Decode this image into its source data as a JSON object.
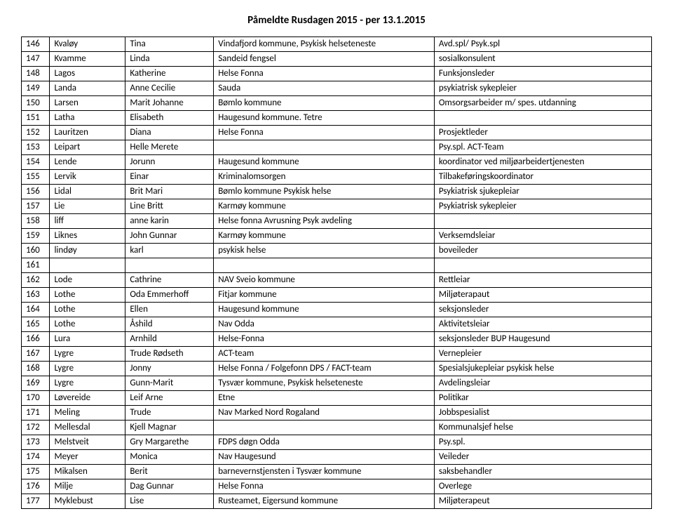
{
  "title": "Påmeldte Rusdagen 2015 - per 13.1.2015",
  "table": {
    "column_widths_pct": [
      4.5,
      12,
      14,
      35,
      34.5
    ],
    "border_color": "#000000",
    "background_color": "#ffffff",
    "text_color": "#000000",
    "font_size_pt": 10,
    "title_font_size_pt": 11,
    "rows": [
      [
        "146",
        "Kvaløy",
        "Tina",
        "Vindafjord kommune, Psykisk helseteneste",
        "Avd.spl/ Psyk.spl"
      ],
      [
        "147",
        "Kvamme",
        "Linda",
        "Sandeid fengsel",
        "sosialkonsulent"
      ],
      [
        "148",
        "Lagos",
        "Katherine",
        "Helse Fonna",
        "Funksjonsleder"
      ],
      [
        "149",
        "Landa",
        "Anne Cecilie",
        "Sauda",
        "psykiatrisk sykepleier"
      ],
      [
        "150",
        "Larsen",
        "Marit Johanne",
        "Bømlo kommune",
        "Omsorgsarbeider m/ spes. utdanning"
      ],
      [
        "151",
        "Latha",
        "Elisabeth",
        "Haugesund kommune. Tetre",
        ""
      ],
      [
        "152",
        "Lauritzen",
        "Diana",
        "Helse Fonna",
        "Prosjektleder"
      ],
      [
        "153",
        "Leipart",
        "Helle Merete",
        "",
        "Psy.spl. ACT-Team"
      ],
      [
        "154",
        "Lende",
        "Jorunn",
        "Haugesund kommune",
        "koordinator ved miljøarbeidertjenesten"
      ],
      [
        "155",
        "Lervik",
        "Einar",
        "Kriminalomsorgen",
        "Tilbakeføringskoordinator"
      ],
      [
        "156",
        "Lidal",
        "Brit Mari",
        "Bømlo kommune Psykisk helse",
        "Psykiatrisk sjukepleiar"
      ],
      [
        "157",
        "Lie",
        "Line Britt",
        "Karmøy kommune",
        "Psykiatrisk sykepleier"
      ],
      [
        "158",
        "liff",
        "anne karin",
        "Helse fonna Avrusning Psyk avdeling",
        ""
      ],
      [
        "159",
        "Liknes",
        "John Gunnar",
        "Karmøy kommune",
        "Verksemdsleiar"
      ],
      [
        "160",
        "lindøy",
        "karl",
        "psykisk helse",
        "boveileder"
      ],
      [
        "161",
        "",
        "",
        " ",
        ""
      ],
      [
        "162",
        "Lode",
        "Cathrine",
        "NAV Sveio kommune",
        "Rettleiar"
      ],
      [
        "163",
        "Lothe",
        "Oda Emmerhoff",
        "Fitjar kommune",
        "Miljøterapaut"
      ],
      [
        "164",
        "Lothe",
        "Ellen",
        "Haugesund kommune",
        "seksjonsleder"
      ],
      [
        "165",
        "Lothe",
        "Åshild",
        "Nav Odda",
        "Aktivitetsleiar"
      ],
      [
        "166",
        "Lura",
        "Arnhild",
        "Helse-Fonna",
        "seksjonsleder BUP Haugesund"
      ],
      [
        "167",
        "Lygre",
        "Trude Rødseth",
        "ACT-team",
        "Vernepleier"
      ],
      [
        "168",
        "Lygre",
        "Jonny",
        "Helse Fonna / Folgefonn DPS / FACT-team",
        "Spesialsjukepleiar psykisk helse"
      ],
      [
        "169",
        "Lygre",
        "Gunn-Marit",
        "Tysvær kommune, Psykisk helseteneste",
        "Avdelingsleiar"
      ],
      [
        "170",
        "Løvereide",
        "Leif Arne",
        "Etne",
        "Politikar"
      ],
      [
        "171",
        "Meling",
        "Trude",
        "Nav Marked Nord Rogaland",
        "Jobbspesialist"
      ],
      [
        "172",
        "Mellesdal",
        "Kjell Magnar",
        "",
        "Kommunalsjef helse"
      ],
      [
        "173",
        "Melstveit",
        "Gry Margarethe",
        "FDPS døgn Odda",
        "Psy.spl."
      ],
      [
        "174",
        "Meyer",
        "Monica",
        "Nav Haugesund",
        "Veileder"
      ],
      [
        "175",
        "Mikalsen",
        "Berit",
        "barnevernstjensten i Tysvær kommune",
        "saksbehandler"
      ],
      [
        "176",
        "Milje",
        "Dag Gunnar",
        "Helse Fonna",
        "Overlege"
      ],
      [
        "177",
        "Myklebust",
        "Lise",
        "Rusteamet, Eigersund kommune",
        "Miljøterapeut"
      ]
    ]
  }
}
